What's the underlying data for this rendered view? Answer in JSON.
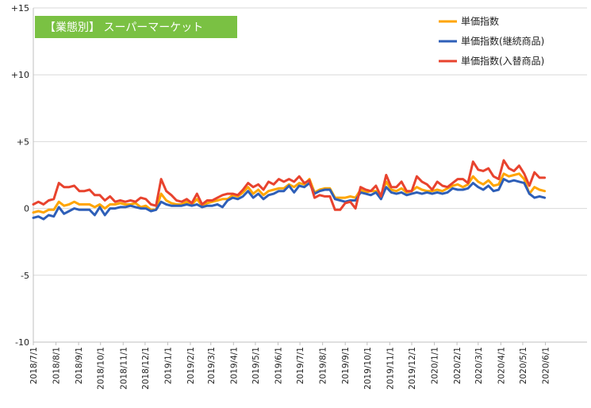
{
  "chart_data": {
    "type": "line",
    "title": "【業態別】 スーパーマーケット",
    "xlabel": "",
    "ylabel": "",
    "ylim": [
      -10,
      15
    ],
    "yticks": [
      {
        "value": 15,
        "label": "+15"
      },
      {
        "value": 10,
        "label": "+10"
      },
      {
        "value": 5,
        "label": "+5"
      },
      {
        "value": 0,
        "label": "0"
      },
      {
        "value": -5,
        "label": "-5"
      },
      {
        "value": -10,
        "label": "-10"
      }
    ],
    "x_tick_labels": [
      "2018/7/1",
      "2018/8/1",
      "2018/9/1",
      "2018/10/1",
      "2018/11/1",
      "2018/12/1",
      "2019/1/1",
      "2019/2/1",
      "2019/3/1",
      "2019/4/1",
      "2019/5/1",
      "2019/6/1",
      "2019/7/1",
      "2019/8/1",
      "2019/9/1",
      "2019/10/1",
      "2019/11/1",
      "2019/12/1",
      "2020/1/1",
      "2020/2/1",
      "2020/3/1",
      "2020/4/1",
      "2020/5/1",
      "2020/6/1"
    ],
    "x_range": [
      "2018-07-01",
      "2020-07-28"
    ],
    "x_interval_days": 7,
    "x_start": "2018-07-01",
    "grid": {
      "horizontal": true,
      "vertical": false
    },
    "legend_position": "top-right",
    "series": [
      {
        "name": "単価指数",
        "color": "#ffa500",
        "values": [
          -0.3,
          -0.2,
          -0.3,
          -0.1,
          -0.1,
          0.5,
          0.2,
          0.3,
          0.5,
          0.3,
          0.3,
          0.3,
          0.1,
          0.3,
          0.0,
          0.3,
          0.3,
          0.4,
          0.3,
          0.3,
          0.4,
          0.1,
          0.2,
          -0.1,
          -0.1,
          1.1,
          0.6,
          0.4,
          0.3,
          0.3,
          0.5,
          0.3,
          0.7,
          0.2,
          0.4,
          0.5,
          0.6,
          0.7,
          0.7,
          1.0,
          0.9,
          1.2,
          1.6,
          1.1,
          1.4,
          1.0,
          1.3,
          1.4,
          1.5,
          1.5,
          1.8,
          1.6,
          1.9,
          1.8,
          2.2,
          1.2,
          1.4,
          1.5,
          1.5,
          0.8,
          0.8,
          0.8,
          0.9,
          0.8,
          1.4,
          1.2,
          1.3,
          1.3,
          1.0,
          2.0,
          1.4,
          1.3,
          1.5,
          1.2,
          1.3,
          1.6,
          1.4,
          1.3,
          1.3,
          1.4,
          1.3,
          1.5,
          1.7,
          1.8,
          1.6,
          1.8,
          2.4,
          2.0,
          1.8,
          2.1,
          1.7,
          1.8,
          2.6,
          2.4,
          2.5,
          2.6,
          2.2,
          1.1,
          1.6,
          1.4,
          1.3
        ]
      },
      {
        "name": "単価指数(継続商品)",
        "color": "#2e5fb8",
        "values": [
          -0.7,
          -0.6,
          -0.8,
          -0.5,
          -0.6,
          0.1,
          -0.4,
          -0.2,
          0.0,
          -0.1,
          -0.1,
          -0.1,
          -0.5,
          0.1,
          -0.5,
          0.0,
          0.0,
          0.1,
          0.1,
          0.2,
          0.1,
          0.0,
          0.0,
          -0.2,
          -0.1,
          0.5,
          0.3,
          0.2,
          0.2,
          0.2,
          0.3,
          0.2,
          0.3,
          0.1,
          0.2,
          0.2,
          0.3,
          0.1,
          0.6,
          0.8,
          0.7,
          0.9,
          1.3,
          0.8,
          1.1,
          0.7,
          1.0,
          1.1,
          1.3,
          1.3,
          1.7,
          1.2,
          1.7,
          1.6,
          1.9,
          1.1,
          1.3,
          1.4,
          1.4,
          0.7,
          0.6,
          0.5,
          0.6,
          0.6,
          1.2,
          1.1,
          1.0,
          1.2,
          0.7,
          1.6,
          1.2,
          1.1,
          1.2,
          1.0,
          1.1,
          1.2,
          1.1,
          1.2,
          1.1,
          1.2,
          1.1,
          1.2,
          1.5,
          1.4,
          1.4,
          1.5,
          1.9,
          1.6,
          1.4,
          1.7,
          1.3,
          1.4,
          2.2,
          2.0,
          2.1,
          2.0,
          1.9,
          1.1,
          0.8,
          0.9,
          0.8
        ]
      },
      {
        "name": "単価指数(入替商品)",
        "color": "#e8432e",
        "values": [
          0.3,
          0.5,
          0.3,
          0.6,
          0.7,
          1.9,
          1.6,
          1.6,
          1.7,
          1.3,
          1.3,
          1.4,
          1.0,
          1.0,
          0.6,
          0.9,
          0.5,
          0.6,
          0.5,
          0.6,
          0.5,
          0.8,
          0.7,
          0.3,
          0.2,
          2.2,
          1.3,
          1.0,
          0.6,
          0.5,
          0.7,
          0.4,
          1.1,
          0.3,
          0.6,
          0.6,
          0.8,
          1.0,
          1.1,
          1.1,
          1.0,
          1.4,
          1.9,
          1.6,
          1.8,
          1.4,
          2.0,
          1.8,
          2.2,
          2.0,
          2.2,
          2.0,
          2.4,
          1.9,
          2.1,
          0.8,
          1.0,
          0.9,
          0.9,
          -0.1,
          -0.1,
          0.4,
          0.5,
          0.0,
          1.6,
          1.4,
          1.3,
          1.7,
          0.9,
          2.5,
          1.6,
          1.6,
          2.0,
          1.3,
          1.3,
          2.4,
          2.0,
          1.8,
          1.4,
          2.0,
          1.7,
          1.6,
          1.9,
          2.2,
          2.2,
          1.9,
          3.5,
          2.9,
          2.8,
          3.0,
          2.4,
          2.2,
          3.6,
          3.0,
          2.8,
          3.2,
          2.6,
          1.7,
          2.7,
          2.3,
          2.3
        ]
      }
    ]
  }
}
